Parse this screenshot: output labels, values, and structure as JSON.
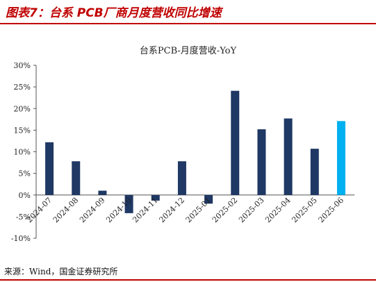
{
  "figure_title": "图表7：台系 PCB厂商月度营收同比增速",
  "source_text": "来源：Wind，国金证券研究所",
  "colors": {
    "title": "#c00000",
    "bar": "#1f3864",
    "highlight": "#00b0f0"
  },
  "chart_data": {
    "type": "bar",
    "title": "台系PCB-月度营收-YoY",
    "xlabel": "",
    "ylabel": "",
    "categories": [
      "2024-07",
      "2024-08",
      "2024-09",
      "2024-10",
      "2024-11",
      "2024-12",
      "2025-01",
      "2025-02",
      "2025-03",
      "2025-04",
      "2025-05",
      "2025-06"
    ],
    "values": [
      12.2,
      7.8,
      1.0,
      -4.2,
      -1.3,
      7.8,
      -2.0,
      24.1,
      15.2,
      17.7,
      10.7,
      17.1
    ],
    "ylim": [
      -10,
      30
    ],
    "yticks": [
      "30%",
      "25%",
      "20%",
      "15%",
      "10%",
      "5%",
      "0%",
      "-5%",
      "-10%"
    ],
    "grid": false,
    "highlight_index": 11
  }
}
